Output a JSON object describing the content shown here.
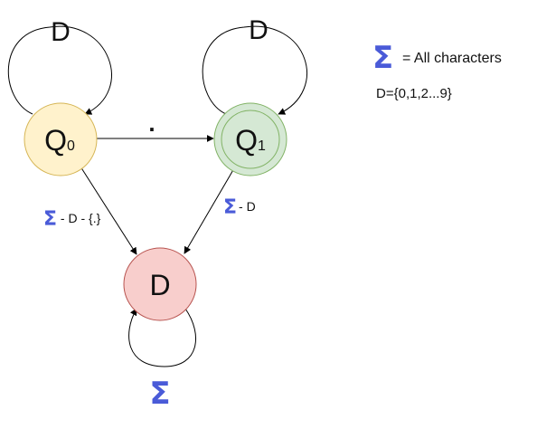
{
  "states": {
    "q0": {
      "main": "Q",
      "sub": "0",
      "fill": "#fff2cc",
      "stroke": "#d6b656"
    },
    "q1": {
      "main": "Q",
      "sub": "1",
      "fill": "#d5e8d4",
      "stroke": "#82b366"
    },
    "dead": {
      "main": "D",
      "fill": "#f8cecc",
      "stroke": "#b85450"
    }
  },
  "transitions": {
    "q0_self": "D",
    "q1_self": "D",
    "q0_to_q1": ".",
    "q0_to_dead_symbol": "Σ",
    "q0_to_dead_rest": " - D - {.}",
    "q1_to_dead_symbol": "Σ",
    "q1_to_dead_rest": "- D",
    "dead_self": "Σ"
  },
  "legend": {
    "sigma_symbol": "Σ",
    "sigma_text": "= All characters",
    "digits_text": "D={0,1,2...9}"
  },
  "colors": {
    "sigma": "#4a5bd8",
    "edge": "#000000"
  }
}
